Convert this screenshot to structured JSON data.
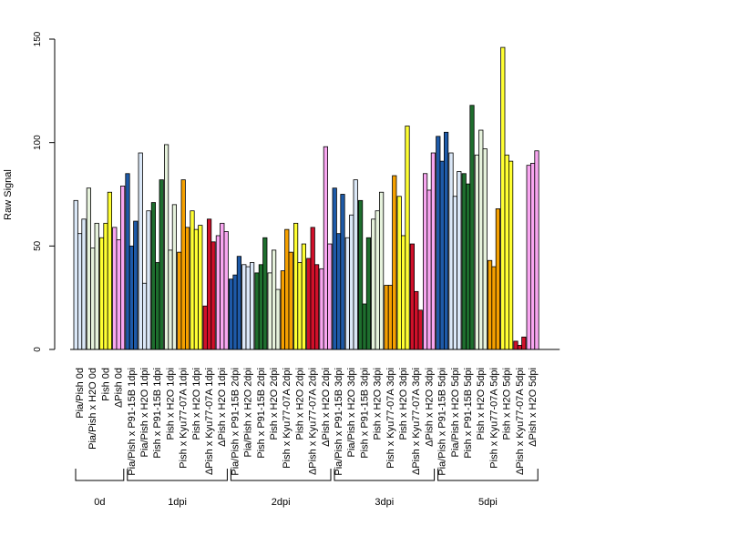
{
  "chart_data": {
    "type": "bar",
    "title": "",
    "xlabel": "",
    "ylabel": "Raw Signal",
    "ylim": [
      0,
      150
    ],
    "yticks": [
      0,
      50,
      100,
      150
    ],
    "grid": false,
    "legend": "none",
    "categories": [
      {
        "label": "Pia/Pish 0d",
        "color": "#dbe8f8",
        "values": [
          72,
          56,
          63
        ]
      },
      {
        "label": "Pia/Pish x H2O 0d",
        "color": "#e6f2dc",
        "values": [
          78,
          49,
          61
        ]
      },
      {
        "label": "Pish 0d",
        "color": "#ffff33",
        "values": [
          54,
          61,
          76
        ]
      },
      {
        "label": "ΔPish 0d",
        "color": "#f8a6f0",
        "values": [
          59,
          53,
          79
        ]
      },
      {
        "label": "Pia/Pish x P91-15B 1dpi",
        "color": "#1e5aa8",
        "values": [
          85,
          50,
          62
        ]
      },
      {
        "label": "Pia/Pish x H2O 1dpi",
        "color": "#dbe8f8",
        "values": [
          95,
          32,
          67
        ]
      },
      {
        "label": "Pish x P91-15B 1dpi",
        "color": "#1e6e2e",
        "values": [
          71,
          42,
          82
        ]
      },
      {
        "label": "Pish x H2O 1dpi",
        "color": "#e6f2dc",
        "values": [
          99,
          48,
          70
        ]
      },
      {
        "label": "Pish x Kyu77-07A 1dpi",
        "color": "#f5a000",
        "values": [
          47,
          82,
          59
        ]
      },
      {
        "label": "Pish x H2O 1dpi",
        "color": "#ffff33",
        "values": [
          67,
          58,
          60
        ]
      },
      {
        "label": "ΔPish x Kyu77-07A 1dpi",
        "color": "#d0102a",
        "values": [
          21,
          63,
          52
        ]
      },
      {
        "label": "ΔPish x H2O 1dpi",
        "color": "#f8a6f0",
        "values": [
          55,
          61,
          57
        ]
      },
      {
        "label": "Pia/Pish x P91-15B 2dpi",
        "color": "#1e5aa8",
        "values": [
          34,
          36,
          45
        ]
      },
      {
        "label": "Pia/Pish x H2O 2dpi",
        "color": "#dbe8f8",
        "values": [
          41,
          40,
          42
        ]
      },
      {
        "label": "Pish x P91-15B 2dpi",
        "color": "#1e6e2e",
        "values": [
          37,
          41,
          54
        ]
      },
      {
        "label": "Pish x H2O 2dpi",
        "color": "#e6f2dc",
        "values": [
          37,
          48,
          29
        ]
      },
      {
        "label": "Pish x Kyu77-07A 2dpi",
        "color": "#f5a000",
        "values": [
          38,
          58,
          47
        ]
      },
      {
        "label": "Pish x H2O 2dpi",
        "color": "#ffff33",
        "values": [
          61,
          42,
          51
        ]
      },
      {
        "label": "ΔPish x Kyu77-07A 2dpi",
        "color": "#d0102a",
        "values": [
          44,
          59,
          41
        ]
      },
      {
        "label": "ΔPish x H2O 2dpi",
        "color": "#f8a6f0",
        "values": [
          39,
          98,
          51
        ]
      },
      {
        "label": "Pia/Pish x P91-15B 3dpi",
        "color": "#1e5aa8",
        "values": [
          78,
          56,
          75
        ]
      },
      {
        "label": "Pia/Pish x H2O 3dpi",
        "color": "#dbe8f8",
        "values": [
          54,
          65,
          82
        ]
      },
      {
        "label": "Pish x P91-15B 3dpi",
        "color": "#1e6e2e",
        "values": [
          72,
          22,
          54
        ]
      },
      {
        "label": "Pish x H2O 3dpi",
        "color": "#e6f2dc",
        "values": [
          63,
          67,
          76
        ]
      },
      {
        "label": "Pish x Kyu77-07A 3dpi",
        "color": "#f5a000",
        "values": [
          31,
          31,
          84
        ]
      },
      {
        "label": "Pish x H2O 3dpi",
        "color": "#ffff33",
        "values": [
          74,
          55,
          108
        ]
      },
      {
        "label": "ΔPish x Kyu77-07A 3dpi",
        "color": "#d0102a",
        "values": [
          51,
          28,
          19
        ]
      },
      {
        "label": "ΔPish x H2O 3dpi",
        "color": "#f8a6f0",
        "values": [
          85,
          77,
          95
        ]
      },
      {
        "label": "Pia/Pish x P91-15B 5dpi",
        "color": "#1e5aa8",
        "values": [
          103,
          91,
          105
        ]
      },
      {
        "label": "Pia/Pish x H2O 5dpi",
        "color": "#dbe8f8",
        "values": [
          95,
          74,
          86
        ]
      },
      {
        "label": "Pish x P91-15B 5dpi",
        "color": "#1e6e2e",
        "values": [
          85,
          80,
          118
        ]
      },
      {
        "label": "Pish x H2O 5dpi",
        "color": "#e6f2dc",
        "values": [
          94,
          106,
          97
        ]
      },
      {
        "label": "Pish x Kyu77-07A 5dpi",
        "color": "#f5a000",
        "values": [
          43,
          40,
          68
        ]
      },
      {
        "label": "Pish x H2O 5dpi",
        "color": "#ffff33",
        "values": [
          146,
          94,
          91
        ]
      },
      {
        "label": "ΔPish x Kyu77-07A 5dpi",
        "color": "#d0102a",
        "values": [
          4,
          2,
          6
        ]
      },
      {
        "label": "ΔPish x H2O 5dpi",
        "color": "#f8a6f0",
        "values": [
          89,
          90,
          96
        ]
      }
    ],
    "label_every": 1,
    "groups": [
      {
        "label": "0d",
        "first": 0,
        "last": 3
      },
      {
        "label": "1dpi",
        "first": 4,
        "last": 11
      },
      {
        "label": "2dpi",
        "first": 12,
        "last": 19
      },
      {
        "label": "3dpi",
        "first": 20,
        "last": 27
      },
      {
        "label": "5dpi",
        "first": 28,
        "last": 35
      }
    ]
  }
}
